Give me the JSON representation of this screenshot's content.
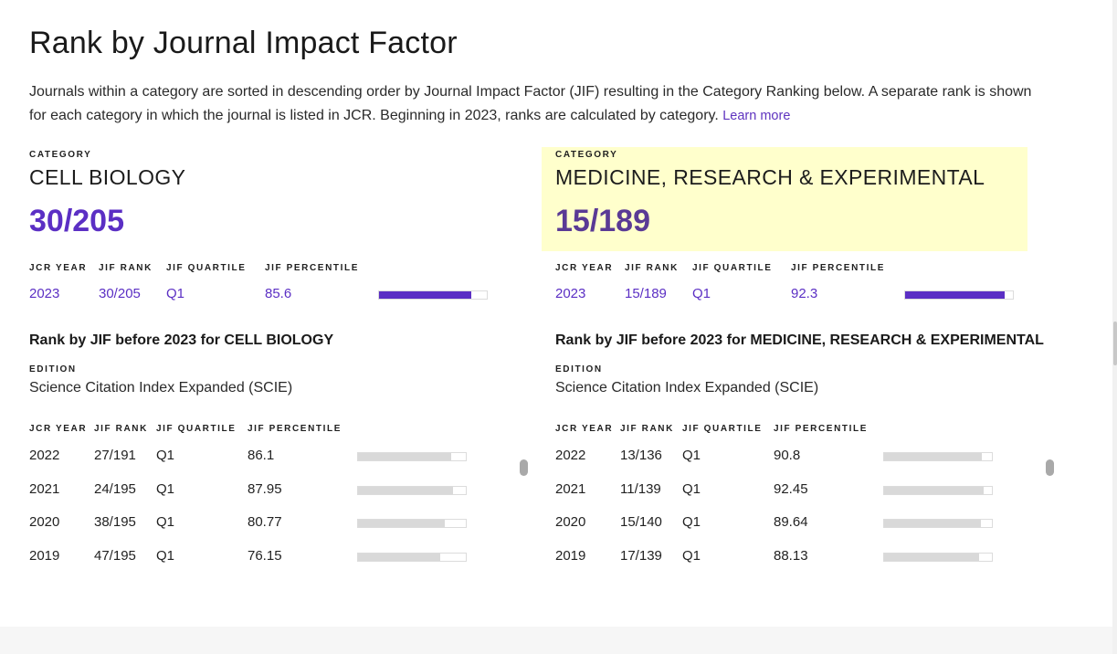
{
  "header": {
    "title": "Rank by Journal Impact Factor",
    "intro": "Journals within a category are sorted in descending order by Journal Impact Factor (JIF) resulting in the Category Ranking below. A separate rank is shown for each category in which the journal is listed in JCR. Beginning in 2023, ranks are calculated by category.",
    "learn_more": "Learn more"
  },
  "labels": {
    "category": "CATEGORY",
    "jcr_year": "JCR YEAR",
    "jif_rank": "JIF RANK",
    "jif_quartile": "JIF QUARTILE",
    "jif_percentile": "JIF PERCENTILE",
    "edition": "EDITION"
  },
  "categories": [
    {
      "name": "CELL BIOLOGY",
      "rank": "30/205",
      "highlighted": false,
      "current": {
        "year": "2023",
        "rank": "30/205",
        "quartile": "Q1",
        "percentile": "85.6",
        "percentile_value": 85.6
      },
      "history_title": "Rank by JIF before 2023 for CELL BIOLOGY",
      "edition": "Science Citation Index Expanded (SCIE)",
      "history": [
        {
          "year": "2022",
          "rank": "27/191",
          "quartile": "Q1",
          "percentile": "86.1",
          "percentile_value": 86.1
        },
        {
          "year": "2021",
          "rank": "24/195",
          "quartile": "Q1",
          "percentile": "87.95",
          "percentile_value": 87.95
        },
        {
          "year": "2020",
          "rank": "38/195",
          "quartile": "Q1",
          "percentile": "80.77",
          "percentile_value": 80.77
        },
        {
          "year": "2019",
          "rank": "47/195",
          "quartile": "Q1",
          "percentile": "76.15",
          "percentile_value": 76.15
        }
      ]
    },
    {
      "name": "MEDICINE, RESEARCH & EXPERIMENTAL",
      "rank": "15/189",
      "highlighted": true,
      "current": {
        "year": "2023",
        "rank": "15/189",
        "quartile": "Q1",
        "percentile": "92.3",
        "percentile_value": 92.3
      },
      "history_title": "Rank by JIF before 2023 for MEDICINE, RESEARCH & EXPERIMENTAL",
      "edition": "Science Citation Index Expanded (SCIE)",
      "history": [
        {
          "year": "2022",
          "rank": "13/136",
          "quartile": "Q1",
          "percentile": "90.8",
          "percentile_value": 90.8
        },
        {
          "year": "2021",
          "rank": "11/139",
          "quartile": "Q1",
          "percentile": "92.45",
          "percentile_value": 92.45
        },
        {
          "year": "2020",
          "rank": "15/140",
          "quartile": "Q1",
          "percentile": "89.64",
          "percentile_value": 89.64
        },
        {
          "year": "2019",
          "rank": "17/139",
          "quartile": "Q1",
          "percentile": "88.13",
          "percentile_value": 88.13
        }
      ]
    }
  ],
  "colors": {
    "accent": "#5b2fc4",
    "highlight": "#ffffcc",
    "bar_grey": "#d9d9d9"
  }
}
